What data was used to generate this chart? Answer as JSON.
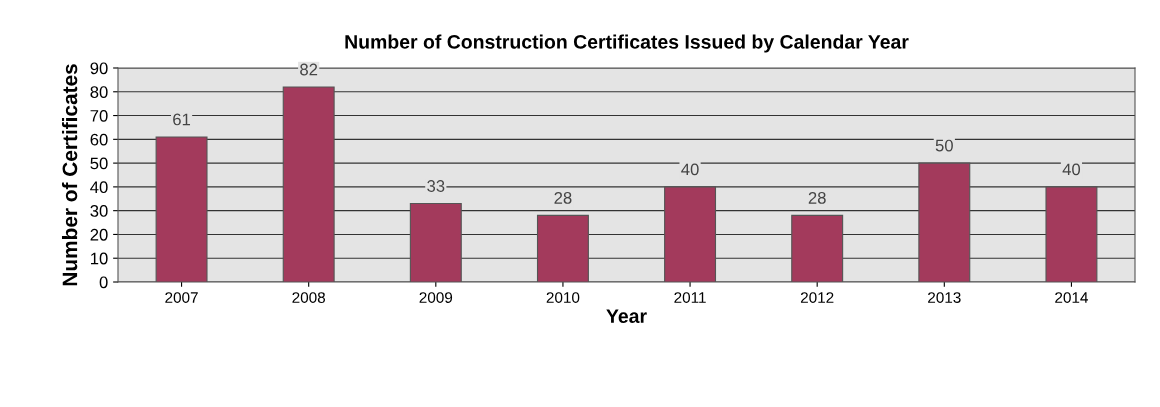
{
  "chart_data": {
    "type": "bar",
    "title": "Number of Construction Certificates Issued by Calendar Year",
    "xlabel": "Year",
    "ylabel": "Number of Certificates",
    "categories": [
      "2007",
      "2008",
      "2009",
      "2010",
      "2011",
      "2012",
      "2013",
      "2014"
    ],
    "values": [
      61,
      82,
      33,
      28,
      40,
      28,
      50,
      40
    ],
    "color": "#a33a5c",
    "ylim": [
      0,
      90
    ],
    "yticks": [
      0,
      10,
      20,
      30,
      40,
      50,
      60,
      70,
      80,
      90
    ],
    "grid": "y",
    "data_labels": true
  }
}
